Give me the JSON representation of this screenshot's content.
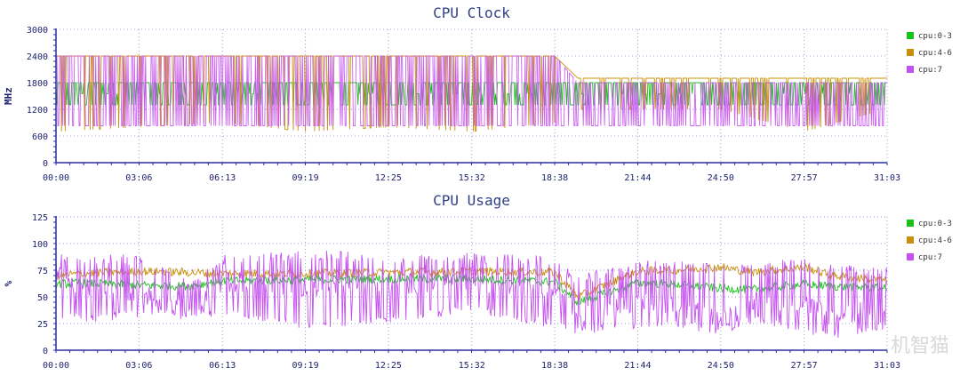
{
  "watermark": "机智猫",
  "chart_data": [
    {
      "type": "line",
      "title": "CPU Clock",
      "ylabel": "MHz",
      "xlabel": "",
      "ylim": [
        0,
        3000
      ],
      "yticks": [
        0,
        600,
        1200,
        1800,
        2400,
        3000
      ],
      "xticks": [
        "00:00",
        "03:06",
        "06:13",
        "09:19",
        "12:25",
        "15:32",
        "18:38",
        "21:44",
        "24:50",
        "27:57",
        "31:03"
      ],
      "grid": true,
      "legend_position": "right",
      "series": [
        {
          "name": "cpu:0-3",
          "color": "#19c219",
          "x": [
            "00:00",
            "03:06",
            "06:13",
            "09:19",
            "12:25",
            "15:32",
            "18:38",
            "19:30",
            "21:44",
            "24:50",
            "27:57",
            "31:03"
          ],
          "values": [
            1800,
            1800,
            1800,
            1800,
            1800,
            1800,
            1800,
            1800,
            1800,
            1800,
            1800,
            1800
          ],
          "values_min": [
            1300,
            1300,
            1300,
            1300,
            1300,
            1300,
            1300,
            1300,
            1300,
            1300,
            1300,
            1300
          ]
        },
        {
          "name": "cpu:4-6",
          "color": "#c8900a",
          "x": [
            "00:00",
            "03:06",
            "06:13",
            "09:19",
            "12:25",
            "15:32",
            "18:38",
            "19:30",
            "21:44",
            "24:50",
            "27:57",
            "31:03"
          ],
          "values": [
            2400,
            2400,
            2400,
            2400,
            2400,
            2400,
            2400,
            1900,
            1900,
            1900,
            1900,
            1900
          ],
          "values_min": [
            700,
            800,
            900,
            700,
            800,
            700,
            900,
            1200,
            1200,
            1200,
            700,
            1200
          ]
        },
        {
          "name": "cpu:7",
          "color": "#c552f0",
          "x": [
            "00:00",
            "03:06",
            "06:13",
            "09:19",
            "12:25",
            "15:32",
            "18:38",
            "19:30",
            "21:44",
            "24:50",
            "27:57",
            "31:03"
          ],
          "values": [
            2400,
            2400,
            2400,
            2400,
            2400,
            2400,
            2400,
            1800,
            1800,
            1800,
            1800,
            1800
          ],
          "values_min": [
            830,
            830,
            830,
            830,
            830,
            830,
            830,
            830,
            830,
            830,
            830,
            830
          ]
        }
      ]
    },
    {
      "type": "line",
      "title": "CPU Usage",
      "ylabel": "%",
      "xlabel": "",
      "ylim": [
        0,
        125
      ],
      "yticks": [
        0,
        25,
        50,
        75,
        100,
        125
      ],
      "xticks": [
        "00:00",
        "03:06",
        "06:13",
        "09:19",
        "12:25",
        "15:32",
        "18:38",
        "21:44",
        "24:50",
        "27:57",
        "31:03"
      ],
      "grid": true,
      "legend_position": "right",
      "series": [
        {
          "name": "cpu:0-3",
          "color": "#19c219",
          "x": [
            "00:00",
            "01:00",
            "03:06",
            "05:00",
            "06:13",
            "09:19",
            "12:25",
            "15:32",
            "18:38",
            "19:30",
            "21:44",
            "23:00",
            "24:50",
            "26:00",
            "27:57",
            "29:00",
            "31:03"
          ],
          "values": [
            62,
            63,
            61,
            60,
            65,
            66,
            67,
            67,
            64,
            45,
            63,
            62,
            58,
            57,
            62,
            60,
            58
          ]
        },
        {
          "name": "cpu:4-6",
          "color": "#c8900a",
          "x": [
            "00:00",
            "01:00",
            "03:06",
            "05:00",
            "06:13",
            "09:19",
            "12:25",
            "15:32",
            "18:38",
            "19:30",
            "21:44",
            "23:00",
            "24:50",
            "26:00",
            "27:57",
            "29:00",
            "31:03"
          ],
          "values": [
            70,
            72,
            74,
            73,
            72,
            72,
            73,
            74,
            73,
            50,
            74,
            75,
            78,
            73,
            78,
            70,
            65
          ]
        },
        {
          "name": "cpu:7",
          "color": "#c552f0",
          "x": [
            "00:00",
            "01:00",
            "03:06",
            "05:00",
            "06:13",
            "09:19",
            "12:25",
            "15:32",
            "18:38",
            "19:30",
            "21:44",
            "23:00",
            "24:50",
            "26:00",
            "27:57",
            "29:00",
            "31:03"
          ],
          "values": [
            70,
            60,
            55,
            35,
            65,
            60,
            62,
            65,
            60,
            30,
            45,
            40,
            30,
            45,
            45,
            30,
            40
          ],
          "values_min": [
            30,
            25,
            30,
            30,
            30,
            20,
            25,
            35,
            20,
            15,
            20,
            20,
            15,
            25,
            15,
            10,
            20
          ],
          "values_max": [
            90,
            90,
            90,
            65,
            90,
            95,
            90,
            92,
            88,
            70,
            85,
            85,
            80,
            80,
            88,
            80,
            80
          ]
        }
      ]
    }
  ]
}
